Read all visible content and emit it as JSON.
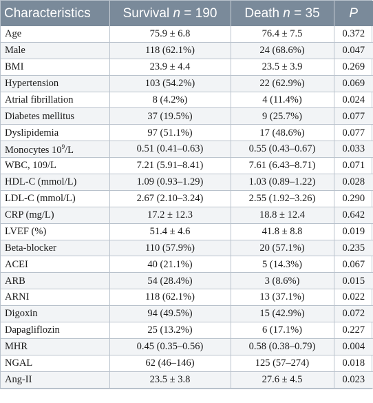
{
  "header": {
    "characteristics": "Characteristics",
    "survival_label": "Survival ",
    "survival_n_symbol": "n",
    "survival_n": " = 190",
    "death_label": "Death ",
    "death_n_symbol": "n",
    "death_n": " = 35",
    "p": "P"
  },
  "rows": [
    {
      "name": "Age",
      "survival": "75.9 ± 6.8",
      "death": "76.4 ± 7.5",
      "p": "0.372"
    },
    {
      "name": "Male",
      "survival": "118 (62.1%)",
      "death": "24 (68.6%)",
      "p": "0.047"
    },
    {
      "name": "BMI",
      "survival": "23.9 ± 4.4",
      "death": "23.5 ± 3.9",
      "p": "0.269"
    },
    {
      "name": "Hypertension",
      "survival": "103 (54.2%)",
      "death": "22 (62.9%)",
      "p": "0.069"
    },
    {
      "name": "Atrial fibrillation",
      "survival": "8 (4.2%)",
      "death": "4 (11.4%)",
      "p": "0.024"
    },
    {
      "name": "Diabetes mellitus",
      "survival": "37 (19.5%)",
      "death": "9 (25.7%)",
      "p": "0.077"
    },
    {
      "name": "Dyslipidemia",
      "survival": "97 (51.1%)",
      "death": "17 (48.6%)",
      "p": "0.077"
    },
    {
      "name": "Monocytes 10",
      "name_sup": "9",
      "name_suffix": "/L",
      "survival": "0.51 (0.41–0.63)",
      "death": "0.55 (0.43–0.67)",
      "p": "0.033"
    },
    {
      "name": "WBC, 109/L",
      "survival": "7.21 (5.91–8.41)",
      "death": "7.61 (6.43–8.71)",
      "p": "0.071"
    },
    {
      "name": "HDL-C (mmol/L)",
      "survival": "1.09 (0.93–1.29)",
      "death": "1.03 (0.89–1.22)",
      "p": "0.028"
    },
    {
      "name": "LDL-C (mmol/L)",
      "survival": "2.67 (2.10–3.24)",
      "death": "2.55 (1.92–3.26)",
      "p": "0.290"
    },
    {
      "name": "CRP (mg/L)",
      "survival": "17.2 ± 12.3",
      "death": "18.8 ± 12.4",
      "p": "0.642"
    },
    {
      "name": "LVEF (%)",
      "survival": "51.4 ± 4.6",
      "death": "41.8 ± 8.8",
      "p": "0.019"
    },
    {
      "name": "Beta-blocker",
      "survival": "110 (57.9%)",
      "death": "20 (57.1%)",
      "p": "0.235"
    },
    {
      "name": "ACEI",
      "survival": "40 (21.1%)",
      "death": "5 (14.3%)",
      "p": "0.067"
    },
    {
      "name": "ARB",
      "survival": "54 (28.4%)",
      "death": "3 (8.6%)",
      "p": "0.015"
    },
    {
      "name": "ARNI",
      "survival": "118 (62.1%)",
      "death": "13 (37.1%)",
      "p": "0.022"
    },
    {
      "name": "Digoxin",
      "survival": "94 (49.5%)",
      "death": "15 (42.9%)",
      "p": "0.072"
    },
    {
      "name": "Dapagliflozin",
      "survival": "25 (13.2%)",
      "death": "6 (17.1%)",
      "p": "0.227"
    },
    {
      "name": "MHR",
      "survival": "0.45 (0.35–0.56)",
      "death": "0.58 (0.38–0.79)",
      "p": "0.004"
    },
    {
      "name": "NGAL",
      "survival": "62 (46–146)",
      "death": "125 (57–274)",
      "p": "0.018"
    },
    {
      "name": "Ang-II",
      "survival": "23.5 ± 3.8",
      "death": "27.6 ± 4.5",
      "p": "0.023"
    }
  ]
}
